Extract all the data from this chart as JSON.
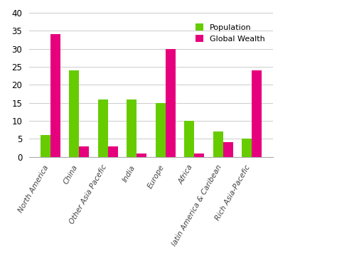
{
  "categories": [
    "North America",
    "China",
    "Other Asia Pacefic",
    "India",
    "Europe",
    "Africa",
    "latin America & Caribean",
    "Rich Asia-Pacefic"
  ],
  "population": [
    6,
    24,
    16,
    16,
    15,
    10,
    7,
    5
  ],
  "global_wealth": [
    34,
    3,
    3,
    1,
    30,
    1,
    4,
    24
  ],
  "pop_color": "#66cc00",
  "wealth_color": "#e6007e",
  "ylim": [
    0,
    40
  ],
  "yticks": [
    0,
    5,
    10,
    15,
    20,
    25,
    30,
    35,
    40
  ],
  "legend_pop": "Population",
  "legend_wealth": "Global Wealth",
  "bar_width": 0.35,
  "bg_color": "#ffffff",
  "label_rotation": 60,
  "label_fontsize": 7.5
}
